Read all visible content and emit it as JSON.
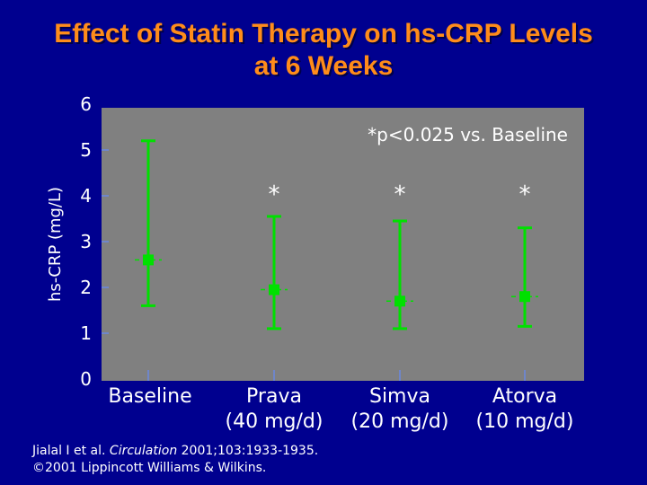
{
  "title": {
    "line1": "Effect of Statin Therapy on hs-CRP Levels",
    "line2": "at 6 Weeks"
  },
  "chart_data": {
    "type": "scatter",
    "subtype": "mean-with-range-error-bars",
    "ylabel": "hs-CRP (mg/L)",
    "ylim": [
      0,
      6
    ],
    "yticks": [
      "0",
      "1",
      "2",
      "3",
      "4",
      "5",
      "6"
    ],
    "categories": [
      {
        "line1": "Baseline",
        "line2": ""
      },
      {
        "line1": "Prava",
        "line2": "(40 mg/d)"
      },
      {
        "line1": "Simva",
        "line2": "(20 mg/d)"
      },
      {
        "line1": "Atorva",
        "line2": "(10 mg/d)"
      }
    ],
    "values": [
      2.6,
      1.95,
      1.7,
      1.8
    ],
    "lower": [
      1.6,
      1.1,
      1.1,
      1.15
    ],
    "upper": [
      5.2,
      3.55,
      3.45,
      3.3
    ],
    "markers": [
      "",
      "*",
      "*",
      "*"
    ],
    "annotation": "*p<0.025 vs. Baseline",
    "colors": {
      "plot_bg": "#808080",
      "series": "#00e000",
      "axis_text": "#ffffff",
      "tick": "#6f86c9"
    }
  },
  "citation": {
    "prefix": "Jialal I et al. ",
    "journal": "Circulation",
    "rest": " 2001;103:1933-1935.",
    "line2": "©2001 Lippincott Williams & Wilkins."
  }
}
